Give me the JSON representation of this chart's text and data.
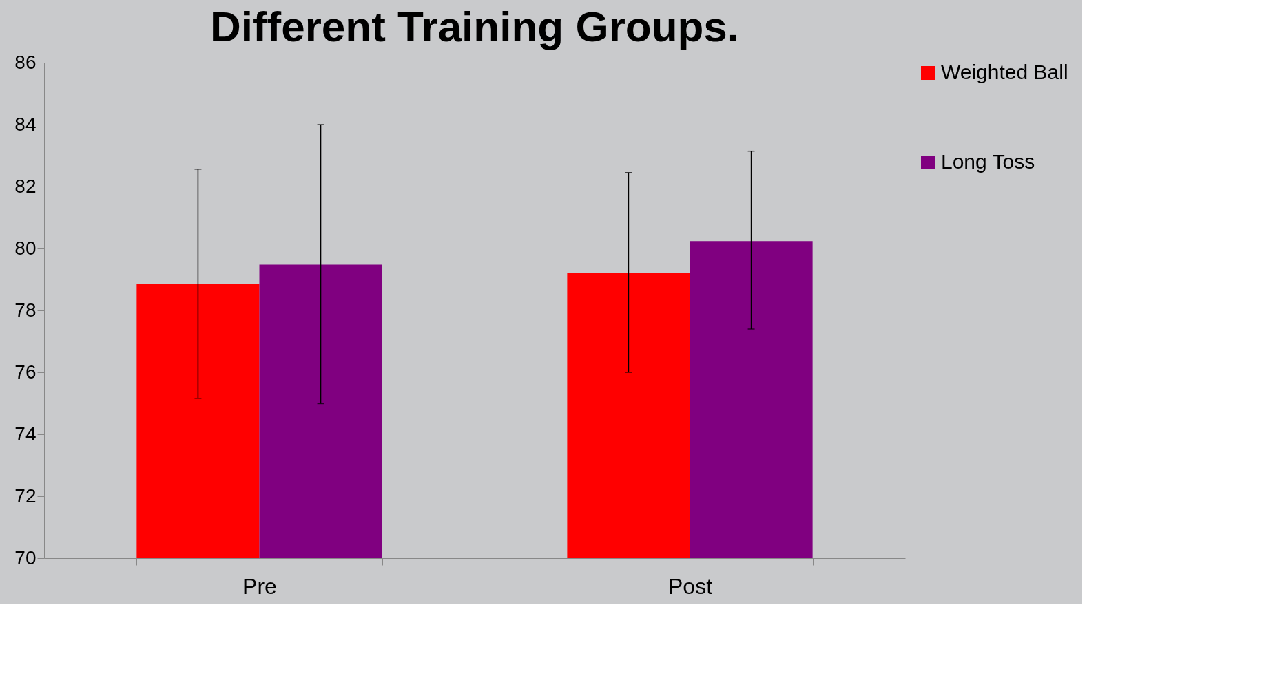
{
  "chart_data": {
    "type": "bar",
    "title": "Different Training Groups.",
    "categories": [
      "Pre",
      "Post"
    ],
    "series": [
      {
        "name": "Weighted Ball",
        "color": "#ff0000",
        "values": [
          78.86,
          79.22
        ],
        "errors": [
          [
            75.16,
            82.56
          ],
          [
            76.0,
            82.45
          ]
        ]
      },
      {
        "name": "Long Toss",
        "color": "#800080",
        "values": [
          79.48,
          80.24
        ],
        "errors": [
          [
            74.99,
            84.0
          ],
          [
            77.4,
            83.14
          ]
        ]
      }
    ],
    "ylim": [
      70,
      86
    ],
    "yticks": [
      70,
      72,
      74,
      76,
      78,
      80,
      82,
      84,
      86
    ],
    "grid": false,
    "legend": "right"
  }
}
